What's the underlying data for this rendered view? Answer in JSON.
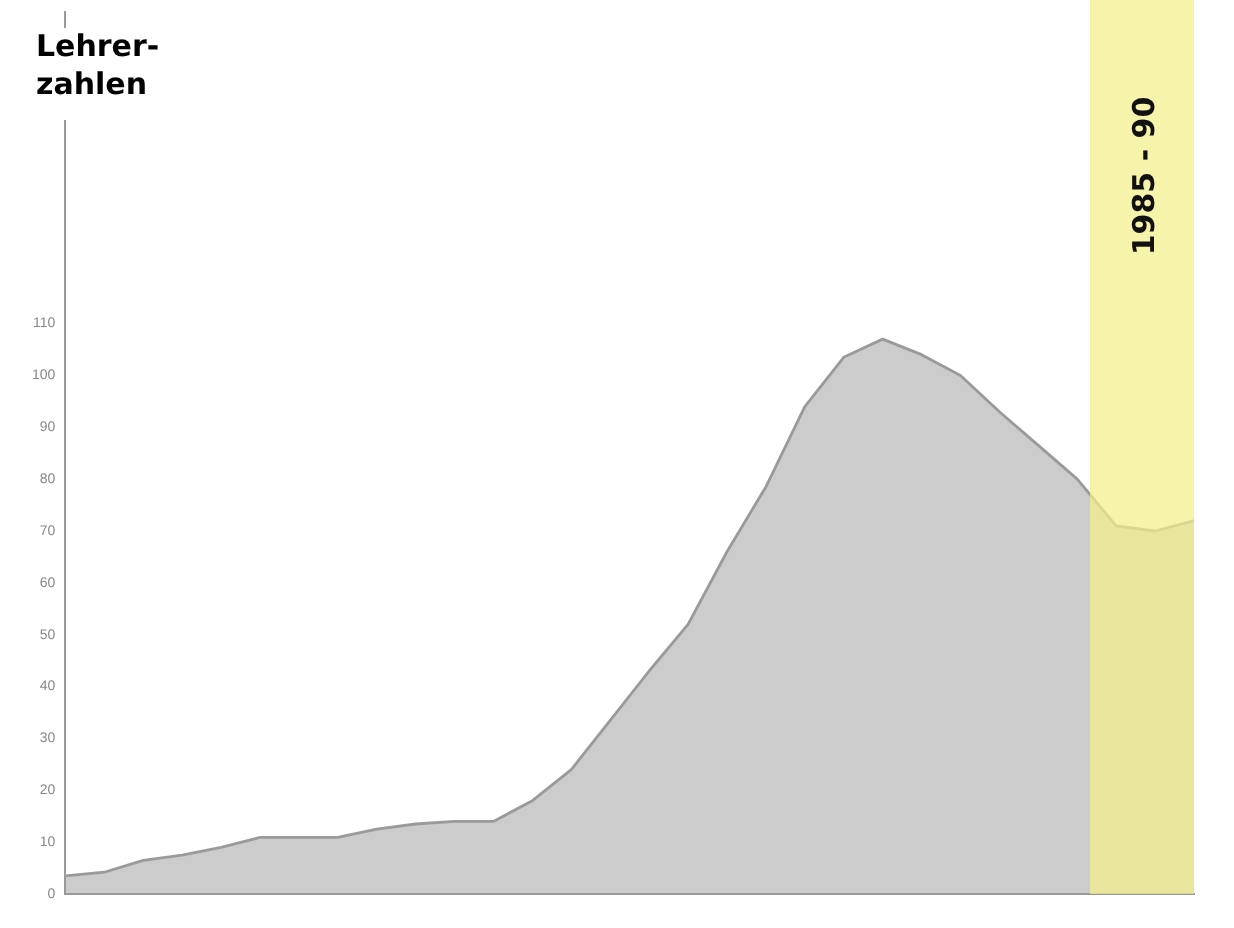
{
  "chart_data": {
    "type": "area",
    "title": "Lehrer-\nzahlen",
    "categories": [
      null,
      null,
      null,
      null,
      null,
      null,
      null,
      null,
      null,
      null,
      null,
      null,
      null,
      null,
      null,
      null,
      null,
      null,
      null,
      null,
      null,
      null,
      null,
      null,
      null,
      null,
      null,
      null,
      null,
      null
    ],
    "series": [
      {
        "color": "#9a9a9c",
        "values": [
          3.5,
          4.2,
          6.5,
          7.5,
          9,
          10.9,
          10.9,
          10.9,
          12.5,
          13.5,
          14,
          14,
          18,
          24,
          33.5,
          43,
          52,
          66,
          78.5,
          94,
          103.5,
          107,
          104,
          100,
          93,
          86.5,
          80,
          71,
          70,
          72
        ]
      }
    ],
    "ylim": [
      0,
      170
    ],
    "yticks": [
      0,
      10,
      20,
      30,
      40,
      50,
      60,
      70,
      80,
      90,
      100,
      110
    ],
    "tick_labels": "y",
    "grid": false,
    "legend": false,
    "annotations": [
      "1985 - 90"
    ]
  }
}
